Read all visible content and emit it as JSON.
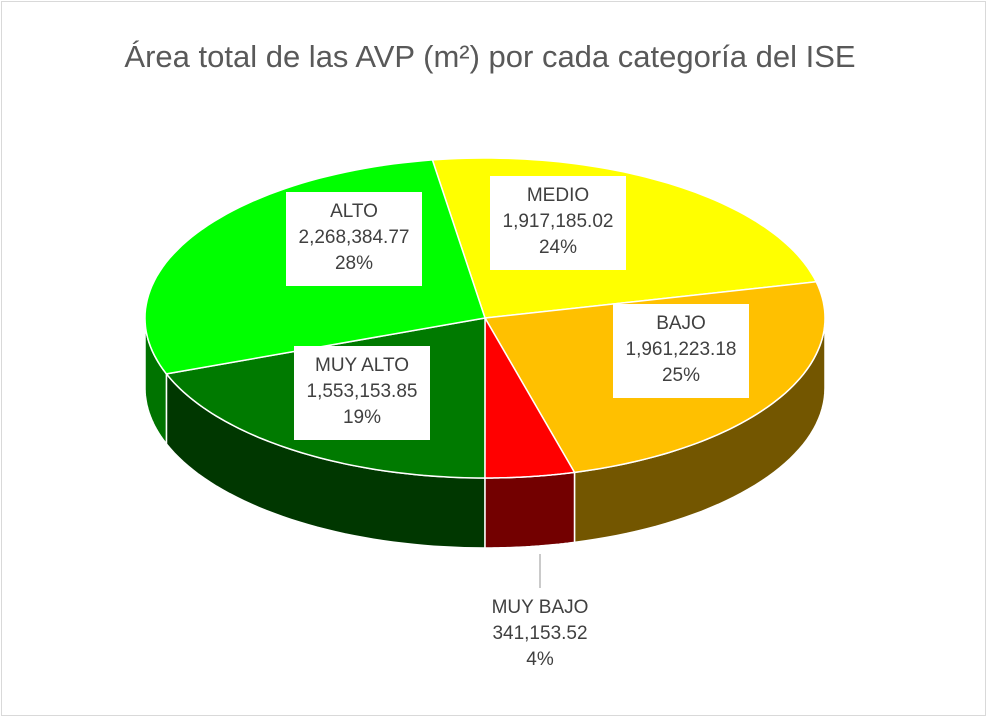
{
  "chart_data": {
    "type": "pie3d",
    "title": "Área total de las AVP (m²) por cada categoría del ISE",
    "categories": [
      "MEDIO",
      "BAJO",
      "MUY BAJO",
      "MUY ALTO",
      "ALTO"
    ],
    "values": [
      1917185.02,
      1961223.18,
      341153.52,
      1553153.85,
      2268384.77
    ],
    "value_labels": [
      "1,917,185.02",
      "1,961,223.18",
      "341,153.52",
      "1,553,153.85",
      "2,268,384.77"
    ],
    "percent_labels": [
      "24%",
      "25%",
      "4%",
      "19%",
      "28%"
    ],
    "colors": [
      "#ffff00",
      "#ffc000",
      "#ff0000",
      "#007a00",
      "#00ff00"
    ]
  }
}
